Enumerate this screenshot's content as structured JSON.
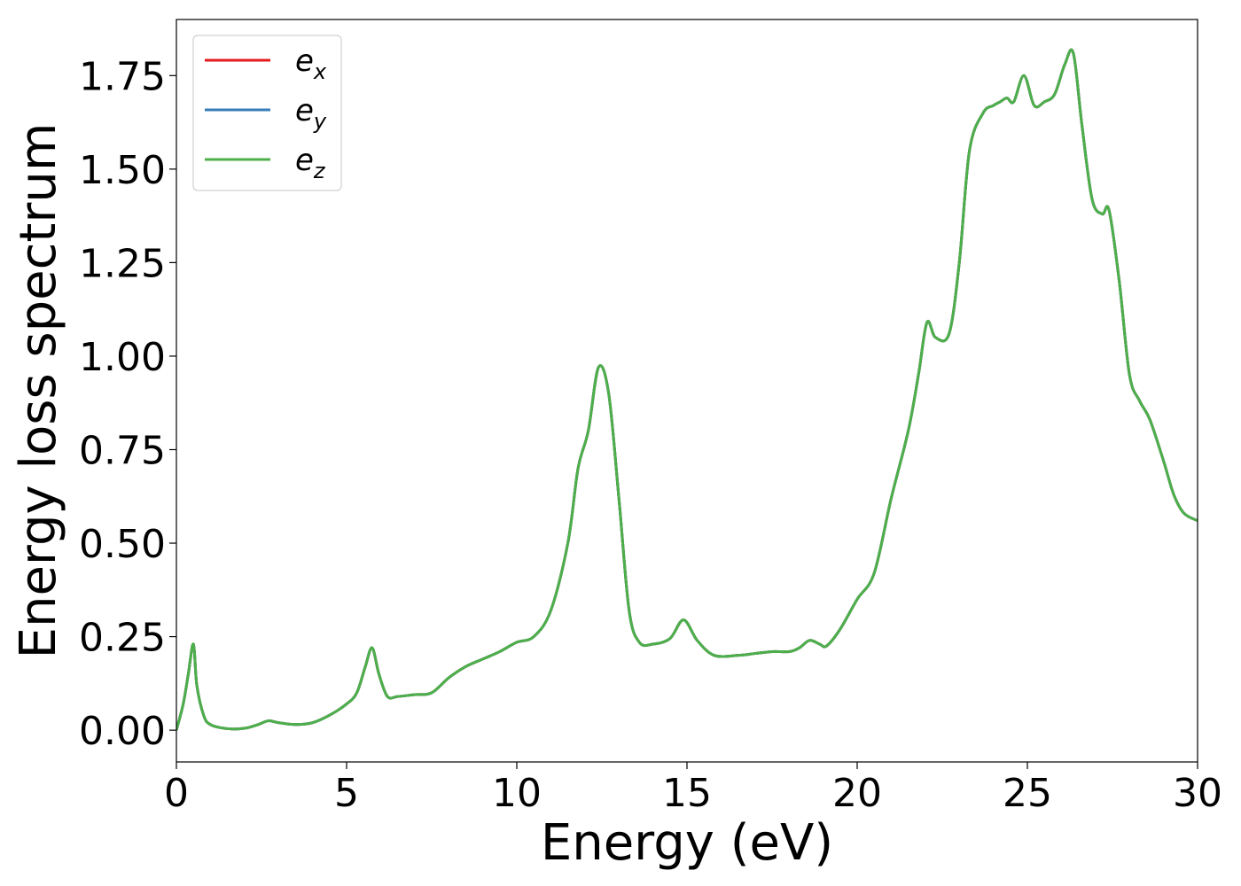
{
  "chart_data": {
    "type": "line",
    "xlabel": "Energy (eV)",
    "ylabel": "Energy loss spectrum",
    "xlim": [
      0,
      30
    ],
    "ylim": [
      -0.085,
      1.9
    ],
    "xticks": [
      0,
      5,
      10,
      15,
      20,
      25,
      30
    ],
    "xtick_labels": [
      "0",
      "5",
      "10",
      "15",
      "20",
      "25",
      "30"
    ],
    "yticks": [
      0,
      0.25,
      0.5,
      0.75,
      1.0,
      1.25,
      1.5,
      1.75
    ],
    "ytick_labels": [
      "0.00",
      "0.25",
      "0.50",
      "0.75",
      "1.00",
      "1.25",
      "1.50",
      "1.75"
    ],
    "grid": false,
    "legend_position": "top-left",
    "x": [
      0,
      0.2,
      0.35,
      0.5,
      0.6,
      0.8,
      1.0,
      1.5,
      2.0,
      2.4,
      2.7,
      3.0,
      3.5,
      4.0,
      4.5,
      5.0,
      5.3,
      5.55,
      5.75,
      5.95,
      6.2,
      6.5,
      7.0,
      7.5,
      8.0,
      8.5,
      9.0,
      9.5,
      10.0,
      10.5,
      11.0,
      11.5,
      11.8,
      12.1,
      12.4,
      12.7,
      13.0,
      13.3,
      13.6,
      14.0,
      14.5,
      14.9,
      15.3,
      15.8,
      16.5,
      17.0,
      17.5,
      18.0,
      18.3,
      18.6,
      18.9,
      19.1,
      19.5,
      20.0,
      20.5,
      21.0,
      21.5,
      21.8,
      22.05,
      22.3,
      22.7,
      23.0,
      23.3,
      23.7,
      24.0,
      24.2,
      24.4,
      24.6,
      24.9,
      25.2,
      25.5,
      25.8,
      26.1,
      26.35,
      26.6,
      26.9,
      27.2,
      27.4,
      27.7,
      28.0,
      28.3,
      28.6,
      29.0,
      29.3,
      29.6,
      30.0
    ],
    "series": [
      {
        "name": "e_x",
        "color": "#e41a1c",
        "values": [
          0.0,
          0.07,
          0.15,
          0.23,
          0.12,
          0.04,
          0.015,
          0.004,
          0.005,
          0.015,
          0.025,
          0.02,
          0.015,
          0.02,
          0.04,
          0.07,
          0.1,
          0.17,
          0.22,
          0.15,
          0.09,
          0.09,
          0.095,
          0.1,
          0.14,
          0.17,
          0.19,
          0.21,
          0.235,
          0.25,
          0.32,
          0.5,
          0.7,
          0.8,
          0.97,
          0.9,
          0.62,
          0.32,
          0.235,
          0.23,
          0.245,
          0.295,
          0.24,
          0.2,
          0.2,
          0.205,
          0.21,
          0.21,
          0.22,
          0.24,
          0.23,
          0.225,
          0.27,
          0.35,
          0.42,
          0.62,
          0.8,
          0.95,
          1.09,
          1.05,
          1.06,
          1.25,
          1.55,
          1.65,
          1.67,
          1.68,
          1.69,
          1.68,
          1.75,
          1.67,
          1.68,
          1.7,
          1.78,
          1.81,
          1.62,
          1.42,
          1.38,
          1.39,
          1.2,
          0.95,
          0.88,
          0.83,
          0.72,
          0.63,
          0.58,
          0.56
        ]
      },
      {
        "name": "e_y",
        "color": "#377eb8",
        "values": [
          0.0,
          0.07,
          0.15,
          0.23,
          0.12,
          0.04,
          0.015,
          0.004,
          0.005,
          0.015,
          0.025,
          0.02,
          0.015,
          0.02,
          0.04,
          0.07,
          0.1,
          0.17,
          0.22,
          0.15,
          0.09,
          0.09,
          0.095,
          0.1,
          0.14,
          0.17,
          0.19,
          0.21,
          0.235,
          0.25,
          0.32,
          0.5,
          0.7,
          0.8,
          0.97,
          0.9,
          0.62,
          0.32,
          0.235,
          0.23,
          0.245,
          0.295,
          0.24,
          0.2,
          0.2,
          0.205,
          0.21,
          0.21,
          0.22,
          0.24,
          0.23,
          0.225,
          0.27,
          0.35,
          0.42,
          0.62,
          0.8,
          0.95,
          1.09,
          1.05,
          1.06,
          1.25,
          1.55,
          1.65,
          1.67,
          1.68,
          1.69,
          1.68,
          1.75,
          1.67,
          1.68,
          1.7,
          1.78,
          1.81,
          1.62,
          1.42,
          1.38,
          1.39,
          1.2,
          0.95,
          0.88,
          0.83,
          0.72,
          0.63,
          0.58,
          0.56
        ]
      },
      {
        "name": "e_z",
        "color": "#4daf4a",
        "values": [
          0.0,
          0.07,
          0.15,
          0.23,
          0.12,
          0.04,
          0.015,
          0.004,
          0.005,
          0.015,
          0.025,
          0.02,
          0.015,
          0.02,
          0.04,
          0.07,
          0.1,
          0.17,
          0.22,
          0.15,
          0.09,
          0.09,
          0.095,
          0.1,
          0.14,
          0.17,
          0.19,
          0.21,
          0.235,
          0.25,
          0.32,
          0.5,
          0.7,
          0.8,
          0.97,
          0.9,
          0.62,
          0.32,
          0.235,
          0.23,
          0.245,
          0.295,
          0.24,
          0.2,
          0.2,
          0.205,
          0.21,
          0.21,
          0.22,
          0.24,
          0.23,
          0.225,
          0.27,
          0.35,
          0.42,
          0.62,
          0.8,
          0.95,
          1.09,
          1.05,
          1.06,
          1.25,
          1.55,
          1.65,
          1.67,
          1.68,
          1.69,
          1.68,
          1.75,
          1.67,
          1.68,
          1.7,
          1.78,
          1.81,
          1.62,
          1.42,
          1.38,
          1.39,
          1.2,
          0.95,
          0.88,
          0.83,
          0.72,
          0.63,
          0.58,
          0.56
        ]
      }
    ],
    "legend": [
      {
        "base": "e",
        "sub": "x",
        "color": "#e41a1c"
      },
      {
        "base": "e",
        "sub": "y",
        "color": "#377eb8"
      },
      {
        "base": "e",
        "sub": "z",
        "color": "#4daf4a"
      }
    ]
  }
}
